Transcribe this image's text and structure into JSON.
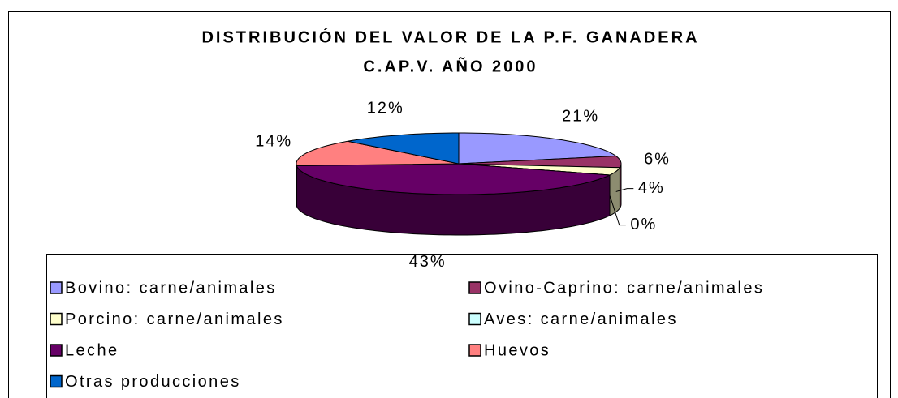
{
  "chart_data": {
    "type": "pie3d",
    "title": "DISTRIBUCIÓN DEL VALOR DE LA P.F. GANADERA",
    "subtitle": "C.AP.V. AÑO 2000",
    "categories": [
      "Bovino: carne/animales",
      "Ovino-Caprino: carne/animales",
      "Porcino: carne/animales",
      "Aves: carne/animales",
      "Leche",
      "Huevos",
      "Otras producciones"
    ],
    "values": [
      21,
      6,
      4,
      0,
      43,
      14,
      12
    ],
    "value_labels": [
      "21%",
      "6%",
      "4%",
      "0%",
      "43%",
      "14%",
      "12%"
    ],
    "colors": [
      "#9999ff",
      "#993366",
      "#ffffcc",
      "#ccffff",
      "#660066",
      "#ff8080",
      "#0066cc"
    ]
  }
}
